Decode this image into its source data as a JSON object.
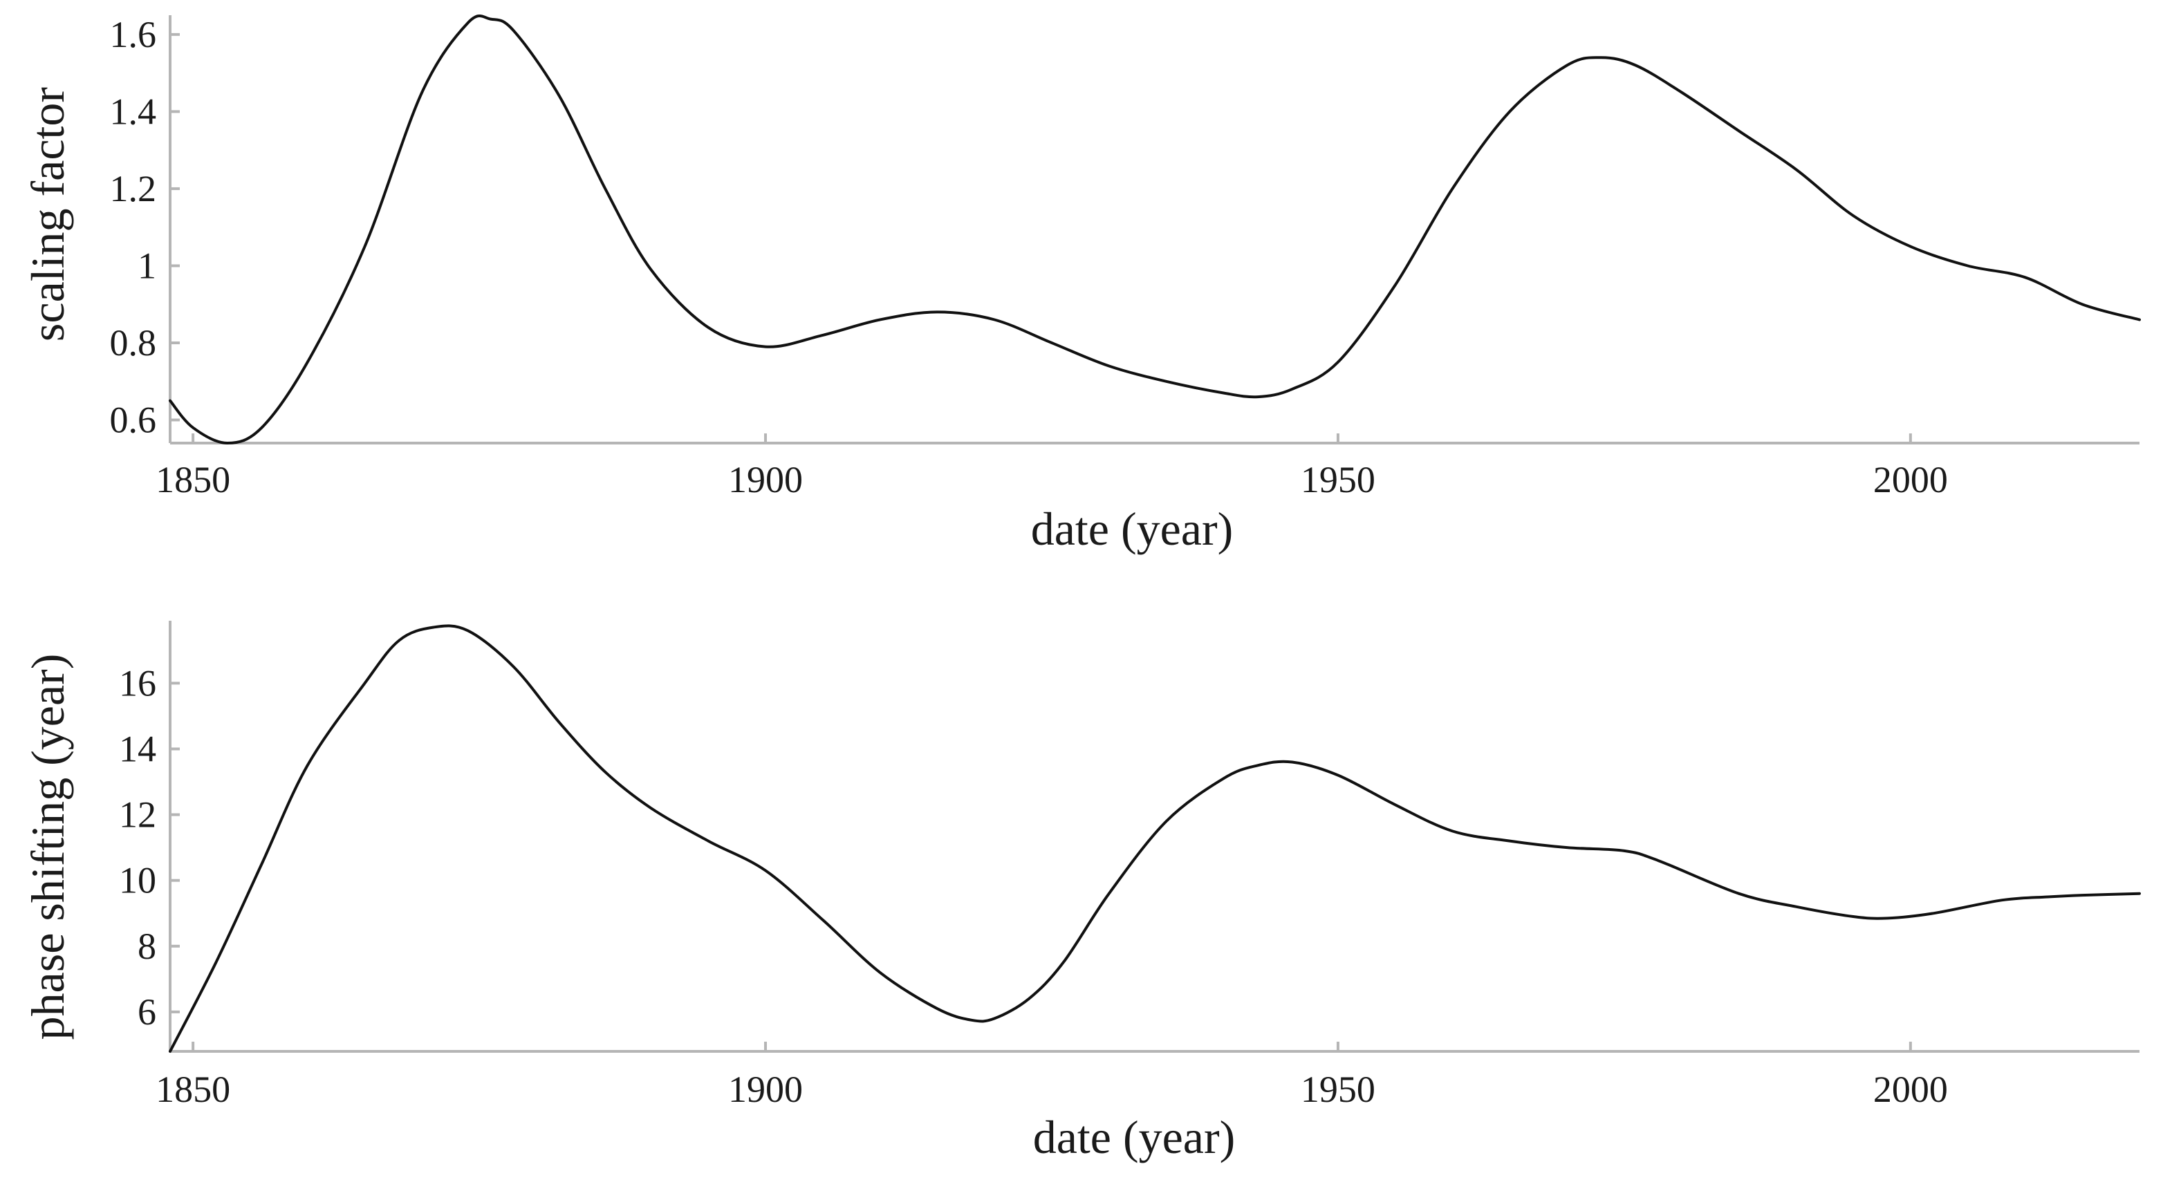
{
  "chart_data": [
    {
      "type": "line",
      "xlabel": "date (year)",
      "ylabel": "scaling factor",
      "xlim": [
        1848,
        2020
      ],
      "ylim": [
        0.54,
        1.65
      ],
      "xticks": [
        1850,
        1900,
        1950,
        2000
      ],
      "xtick_labels": [
        "1850",
        "1900",
        "1950",
        "2000"
      ],
      "yticks": [
        0.6,
        0.8,
        1.0,
        1.2,
        1.4,
        1.6
      ],
      "ytick_labels": [
        "0.6",
        "0.8",
        "1",
        "1.2",
        "1.4",
        "1.6"
      ],
      "grid": false,
      "series": [
        {
          "x": [
            1848,
            1850,
            1853,
            1856,
            1860,
            1865,
            1870,
            1874,
            1876,
            1878,
            1882,
            1886,
            1890,
            1895,
            1900,
            1905,
            1910,
            1915,
            1920,
            1925,
            1930,
            1935,
            1940,
            1943,
            1946,
            1950,
            1955,
            1960,
            1965,
            1970,
            1973,
            1976,
            1980,
            1985,
            1990,
            1995,
            2000,
            2005,
            2010,
            2015,
            2020
          ],
          "y": [
            0.65,
            0.58,
            0.54,
            0.58,
            0.75,
            1.05,
            1.45,
            1.63,
            1.64,
            1.61,
            1.44,
            1.2,
            0.99,
            0.84,
            0.79,
            0.82,
            0.86,
            0.88,
            0.86,
            0.8,
            0.74,
            0.7,
            0.67,
            0.66,
            0.68,
            0.75,
            0.95,
            1.2,
            1.4,
            1.52,
            1.54,
            1.52,
            1.45,
            1.35,
            1.25,
            1.13,
            1.05,
            1.0,
            0.97,
            0.9,
            0.86
          ]
        }
      ]
    },
    {
      "type": "line",
      "xlabel": "date (year)",
      "ylabel": "phase shifting (year)",
      "xlim": [
        1848,
        2020
      ],
      "ylim": [
        4.8,
        17.9
      ],
      "xticks": [
        1850,
        1900,
        1950,
        2000
      ],
      "xtick_labels": [
        "1850",
        "1900",
        "1950",
        "2000"
      ],
      "yticks": [
        6,
        8,
        10,
        12,
        14,
        16
      ],
      "ytick_labels": [
        "6",
        "8",
        "10",
        "12",
        "14",
        "16"
      ],
      "grid": false,
      "series": [
        {
          "x": [
            1848,
            1852,
            1856,
            1860,
            1865,
            1868,
            1871,
            1874,
            1878,
            1882,
            1886,
            1890,
            1895,
            1900,
            1905,
            1910,
            1915,
            1918,
            1920,
            1923,
            1926,
            1930,
            1935,
            1940,
            1943,
            1946,
            1950,
            1955,
            1960,
            1965,
            1970,
            1975,
            1978,
            1985,
            1990,
            1995,
            1998,
            2002,
            2008,
            2012,
            2015,
            2020
          ],
          "y": [
            4.8,
            7.5,
            10.5,
            13.5,
            16.0,
            17.3,
            17.7,
            17.6,
            16.5,
            14.8,
            13.3,
            12.2,
            11.2,
            10.3,
            8.8,
            7.2,
            6.1,
            5.75,
            5.8,
            6.4,
            7.5,
            9.6,
            11.8,
            13.1,
            13.5,
            13.6,
            13.2,
            12.3,
            11.5,
            11.2,
            11.0,
            10.9,
            10.6,
            9.6,
            9.2,
            8.9,
            8.85,
            9.0,
            9.4,
            9.5,
            9.55,
            9.6
          ]
        }
      ]
    }
  ]
}
